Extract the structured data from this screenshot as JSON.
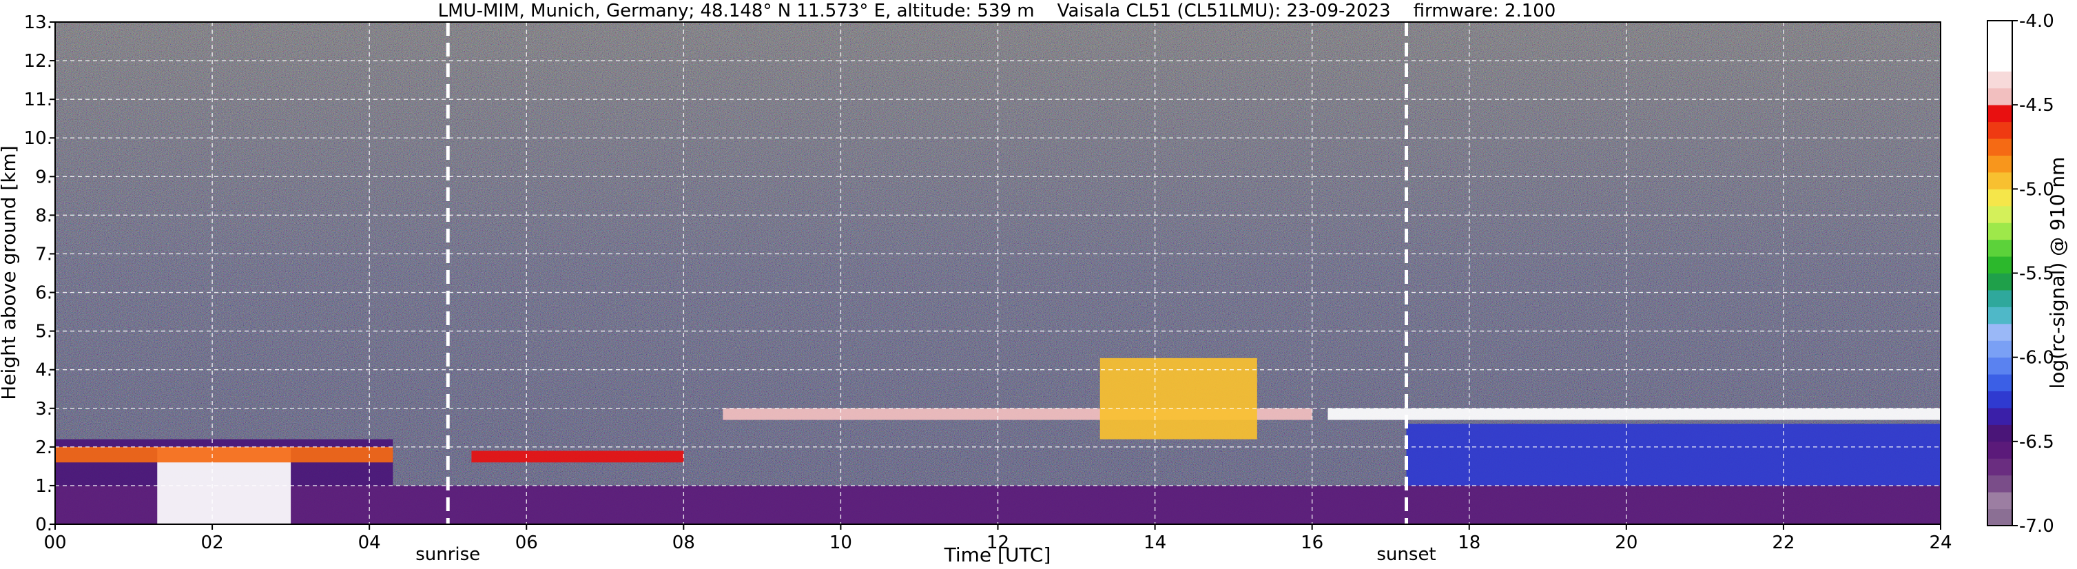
{
  "chart_data": {
    "type": "heatmap",
    "title": "LMU-MIM, Munich, Germany; 48.148° N 11.573° E, altitude: 539 m    Vaisala CL51 (CL51LMU): 23-09-2023    firmware: 2.100",
    "xlabel": "Time [UTC]",
    "ylabel": "Height above ground [km]",
    "xlim": [
      0,
      24
    ],
    "ylim": [
      0,
      13
    ],
    "x_tick_labels": [
      "00",
      "02",
      "04",
      "06",
      "08",
      "10",
      "12",
      "14",
      "16",
      "18",
      "20",
      "22",
      "24"
    ],
    "y_tick_labels": [
      "0.",
      "1.",
      "2.",
      "3.",
      "4.",
      "5.",
      "6.",
      "7.",
      "8.",
      "9.",
      "10.",
      "11.",
      "12.",
      "13."
    ],
    "grid": true,
    "colorbar": {
      "label": "log(rc-signal) @ 910 nm",
      "range": [
        -7.0,
        -4.0
      ],
      "tick_labels": [
        "-4.0",
        "-4.5",
        "-5.0",
        "-5.5",
        "-6.0",
        "-6.5",
        "-7.0"
      ],
      "colors": [
        "#8b6f94",
        "#9c7ea2",
        "#7a4d89",
        "#6a2d80",
        "#5b1a7a",
        "#4a1578",
        "#3a1fa8",
        "#2f3ad0",
        "#3b5fe6",
        "#5a82f0",
        "#7aa0f5",
        "#9ab8f7",
        "#4fb8c8",
        "#2fa89c",
        "#1fa04a",
        "#2cb82c",
        "#5cd23a",
        "#9ee84a",
        "#d4f05a",
        "#f5e64a",
        "#f8c030",
        "#f8961c",
        "#f56a14",
        "#ef3a12",
        "#e81010",
        "#f2bfbf",
        "#f7dada",
        "#ffffff",
        "#ffffff",
        "#ffffff"
      ]
    },
    "annotations": [
      {
        "text": "sunrise",
        "x": 5.0
      },
      {
        "text": "sunset",
        "x": 17.2
      }
    ],
    "layers": [
      {
        "x": [
          0.0,
          24.0
        ],
        "y": [
          0.0,
          1.0
        ],
        "value": -6.6
      },
      {
        "x": [
          0.0,
          4.3
        ],
        "y": [
          1.0,
          2.2
        ],
        "value": -6.4
      },
      {
        "x": [
          1.3,
          3.0
        ],
        "y": [
          0.0,
          2.0
        ],
        "value": -4.2
      },
      {
        "x": [
          0.0,
          4.3
        ],
        "y": [
          1.6,
          2.0
        ],
        "value": -4.8
      },
      {
        "x": [
          5.3,
          8.0
        ],
        "y": [
          1.6,
          1.9
        ],
        "value": -4.6
      },
      {
        "x": [
          8.5,
          16.0
        ],
        "y": [
          2.7,
          3.0
        ],
        "value": -4.4
      },
      {
        "x": [
          13.3,
          15.3
        ],
        "y": [
          2.2,
          4.3
        ],
        "value": -5.0
      },
      {
        "x": [
          16.2,
          24.0
        ],
        "y": [
          2.7,
          3.0
        ],
        "value": -4.3
      },
      {
        "x": [
          17.2,
          24.0
        ],
        "y": [
          1.0,
          2.6
        ],
        "value": -6.2
      }
    ]
  }
}
